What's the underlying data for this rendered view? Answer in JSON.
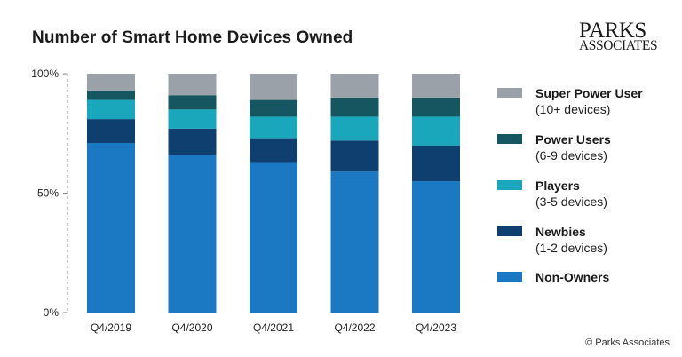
{
  "title": "Number of Smart Home Devices Owned",
  "logo": {
    "line1": "PARKS",
    "line2": "ASSOCIATES"
  },
  "copyright": "© Parks Associates",
  "legend": [
    {
      "name": "Super Power User",
      "sub": "(10+ devices)"
    },
    {
      "name": "Power Users",
      "sub": "(6-9 devices)"
    },
    {
      "name": "Players",
      "sub": "(3-5 devices)"
    },
    {
      "name": "Newbies",
      "sub": "(1-2 devices)"
    },
    {
      "name": "Non-Owners",
      "sub": ""
    }
  ],
  "chart_data": {
    "type": "bar",
    "stacked": true,
    "title": "Number of Smart Home Devices Owned",
    "xlabel": "",
    "ylabel": "",
    "ylim": [
      0,
      100
    ],
    "yticks": [
      "0%",
      "50%",
      "100%"
    ],
    "grid": false,
    "legend_position": "right",
    "categories": [
      "Q4/2019",
      "Q4/2020",
      "Q4/2021",
      "Q4/2022",
      "Q4/2023"
    ],
    "series": [
      {
        "name": "Non-Owners",
        "color": "#1b78c2",
        "values": [
          71,
          66,
          63,
          59,
          55
        ]
      },
      {
        "name": "Newbies",
        "color": "#0e3f6e",
        "values": [
          10,
          11,
          10,
          13,
          15
        ]
      },
      {
        "name": "Players",
        "color": "#1aa6bb",
        "values": [
          8,
          8,
          9,
          10,
          12
        ]
      },
      {
        "name": "Power Users",
        "color": "#155660",
        "values": [
          4,
          6,
          7,
          8,
          8
        ]
      },
      {
        "name": "Super Power User",
        "color": "#9aa1a9",
        "values": [
          7,
          9,
          11,
          10,
          10
        ]
      }
    ]
  }
}
